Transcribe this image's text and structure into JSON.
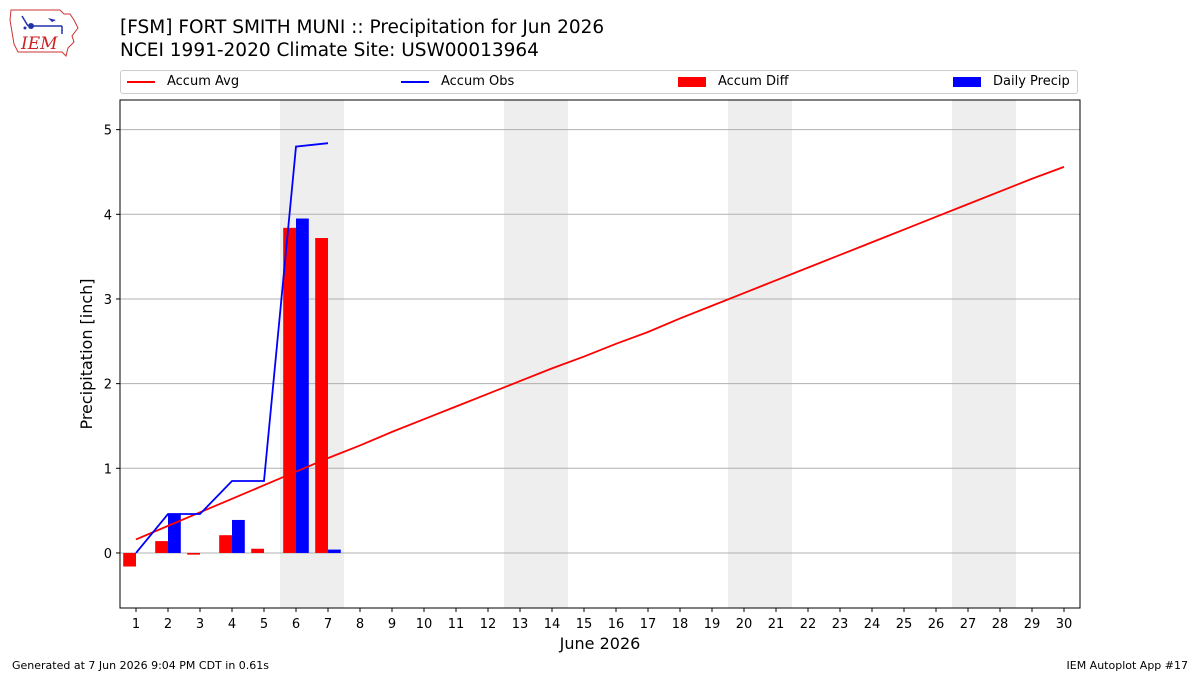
{
  "header": {
    "title_line1": "[FSM] FORT SMITH MUNI :: Precipitation for Jun 2026",
    "title_line2": "NCEI 1991-2020 Climate Site: USW00013964"
  },
  "logo": {
    "text": "IEM",
    "icon": "iowa-state-outline-logo"
  },
  "legend": {
    "accum_avg": "Accum Avg",
    "accum_obs": "Accum Obs",
    "accum_diff": "Accum Diff",
    "daily_precip": "Daily Precip"
  },
  "footer": {
    "left": "Generated at 7 Jun 2026 9:04 PM CDT in 0.61s",
    "right": "IEM Autoplot App #17"
  },
  "chart_data": {
    "type": "bar",
    "xlabel": "June 2026",
    "ylabel": "Precipitation [inch]",
    "xlim": [
      0.5,
      30.5
    ],
    "ylim": [
      -0.65,
      5.35
    ],
    "x_ticks": [
      1,
      2,
      3,
      4,
      5,
      6,
      7,
      8,
      9,
      10,
      11,
      12,
      13,
      14,
      15,
      16,
      17,
      18,
      19,
      20,
      21,
      22,
      23,
      24,
      25,
      26,
      27,
      28,
      29,
      30
    ],
    "y_ticks": [
      0,
      1,
      2,
      3,
      4,
      5
    ],
    "grid": "horizontal",
    "weekend_shading": [
      [
        5.5,
        7.5
      ],
      [
        12.5,
        14.5
      ],
      [
        19.5,
        21.5
      ],
      [
        26.5,
        28.5
      ]
    ],
    "colors": {
      "accum_avg": "#ff0000",
      "accum_obs": "#0000ff",
      "accum_diff": "#ff0000",
      "daily_precip": "#0000ff",
      "weekend": "#eeeeee",
      "grid": "#b0b0b0"
    },
    "series": [
      {
        "name": "Accum Avg",
        "kind": "line",
        "x": [
          1,
          2,
          3,
          4,
          5,
          6,
          7,
          8,
          9,
          10,
          11,
          12,
          13,
          14,
          15,
          16,
          17,
          18,
          19,
          20,
          21,
          22,
          23,
          24,
          25,
          26,
          27,
          28,
          29,
          30
        ],
        "values": [
          0.16,
          0.32,
          0.48,
          0.64,
          0.8,
          0.96,
          1.12,
          1.27,
          1.43,
          1.58,
          1.73,
          1.88,
          2.03,
          2.18,
          2.32,
          2.47,
          2.61,
          2.77,
          2.92,
          3.07,
          3.22,
          3.37,
          3.52,
          3.67,
          3.82,
          3.97,
          4.12,
          4.27,
          4.42,
          4.56
        ]
      },
      {
        "name": "Accum Obs",
        "kind": "line",
        "x": [
          1,
          2,
          3,
          4,
          5,
          6,
          7
        ],
        "values": [
          0.0,
          0.46,
          0.46,
          0.85,
          0.85,
          4.8,
          4.84
        ]
      },
      {
        "name": "Accum Diff",
        "kind": "bar",
        "x": [
          1,
          2,
          3,
          4,
          5,
          6,
          7
        ],
        "values": [
          -0.16,
          0.14,
          -0.02,
          0.21,
          0.05,
          3.84,
          3.72
        ]
      },
      {
        "name": "Daily Precip",
        "kind": "bar",
        "x": [
          1,
          2,
          3,
          4,
          5,
          6,
          7
        ],
        "values": [
          0.0,
          0.46,
          0.0,
          0.39,
          0.0,
          3.95,
          0.04
        ]
      }
    ]
  }
}
